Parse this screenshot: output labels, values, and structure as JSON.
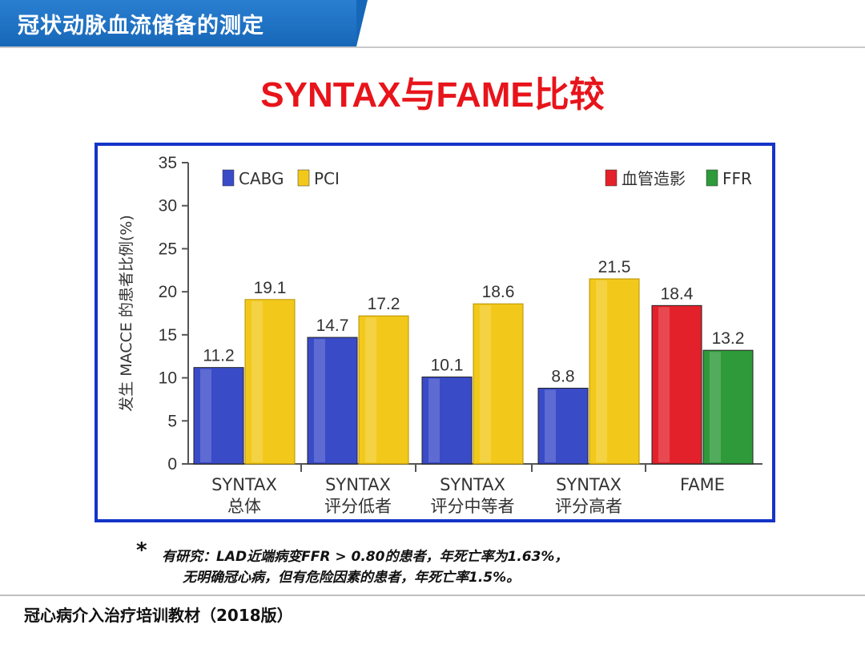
{
  "header": {
    "title": "冠状动脉血流储备的测定"
  },
  "slide_title": "SYNTAX与FAME比较",
  "chart_data": {
    "type": "bar",
    "ylabel": "发生 MACCE 的患者比例(%)",
    "ylim": [
      0,
      35
    ],
    "yticks": [
      0,
      5,
      10,
      15,
      20,
      25,
      30,
      35
    ],
    "grid": false,
    "legend_left": [
      {
        "name": "CABG",
        "color": "#3a4bc8"
      },
      {
        "name": "PCI",
        "color": "#f2c91a"
      }
    ],
    "legend_right": [
      {
        "name": "血管造影",
        "color": "#e3212a"
      },
      {
        "name": "FFR",
        "color": "#2e9a3a"
      }
    ],
    "groups": [
      {
        "label": [
          "SYNTAX",
          "总体"
        ],
        "bars": [
          {
            "series": "CABG",
            "value": 11.2,
            "label": "11.2",
            "color": "#3a4bc8"
          },
          {
            "series": "PCI",
            "value": 19.1,
            "label": "19.1",
            "color": "#f2c91a"
          }
        ]
      },
      {
        "label": [
          "SYNTAX",
          "评分低者"
        ],
        "bars": [
          {
            "series": "CABG",
            "value": 14.7,
            "label": "14.7",
            "color": "#3a4bc8"
          },
          {
            "series": "PCI",
            "value": 17.2,
            "label": "17.2",
            "color": "#f2c91a"
          }
        ]
      },
      {
        "label": [
          "SYNTAX",
          "评分中等者"
        ],
        "bars": [
          {
            "series": "CABG",
            "value": 10.1,
            "label": "10.1",
            "color": "#3a4bc8"
          },
          {
            "series": "PCI",
            "value": 18.6,
            "label": "18.6",
            "color": "#f2c91a"
          }
        ]
      },
      {
        "label": [
          "SYNTAX",
          "评分高者"
        ],
        "bars": [
          {
            "series": "CABG",
            "value": 8.8,
            "label": "8.8",
            "color": "#3a4bc8"
          },
          {
            "series": "PCI",
            "value": 21.5,
            "label": "21.5",
            "color": "#f2c91a"
          }
        ]
      },
      {
        "label": [
          "FAME"
        ],
        "bars": [
          {
            "series": "血管造影",
            "value": 18.4,
            "label": "18.4",
            "color": "#e3212a"
          },
          {
            "series": "FFR",
            "value": 13.2,
            "label": "13.2",
            "color": "#2e9a3a"
          }
        ]
      }
    ]
  },
  "note": {
    "star": "*",
    "line1": "有研究：LAD近端病变FFR > 0.80的患者，年死亡率为1.63%，",
    "line2": "无明确冠心病，但有危险因素的患者，年死亡率1.5%。"
  },
  "footer": {
    "text": "冠心病介入治疗培训教材（2018版）"
  }
}
